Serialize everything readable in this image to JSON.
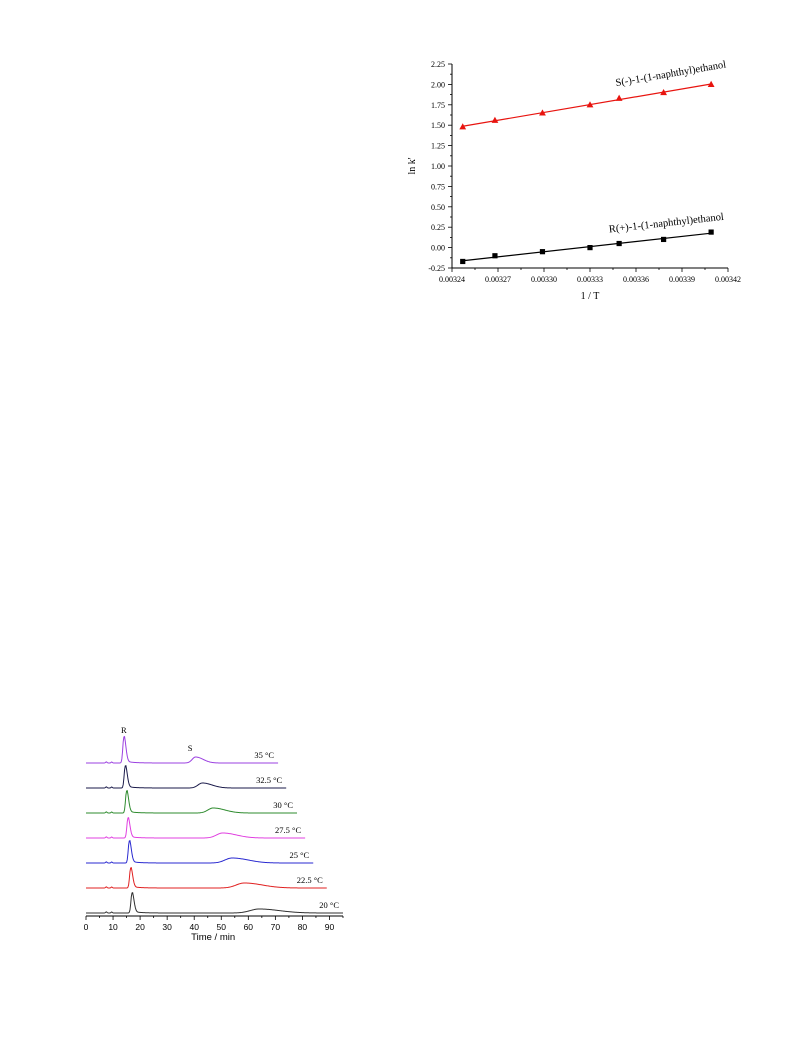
{
  "chart_data": [
    {
      "type": "scatter",
      "xlabel": "1 / T",
      "ylabel": "ln k'",
      "xlim": [
        0.00324,
        0.00342
      ],
      "ylim": [
        -0.25,
        2.25
      ],
      "xticks": [
        "0.00324",
        "0.00327",
        "0.00330",
        "0.00333",
        "0.00336",
        "0.00339",
        "0.00342"
      ],
      "yticks": [
        "-0.25",
        "0.00",
        "0.25",
        "0.50",
        "0.75",
        "1.00",
        "1.25",
        "1.50",
        "1.75",
        "2.00",
        "2.25"
      ],
      "series": [
        {
          "name": "S(-)-1-(1-naphthyl)ethanol",
          "marker": "triangle",
          "color": "#e8140f",
          "x": [
            0.003247,
            0.003268,
            0.003299,
            0.00333,
            0.003349,
            0.003378,
            0.003409
          ],
          "y": [
            1.48,
            1.56,
            1.65,
            1.75,
            1.83,
            1.9,
            2.0
          ]
        },
        {
          "name": "R(+)-1-(1-naphthyl)ethanol",
          "marker": "square",
          "color": "#000000",
          "x": [
            0.003247,
            0.003268,
            0.003299,
            0.00333,
            0.003349,
            0.003378,
            0.003409
          ],
          "y": [
            -0.17,
            -0.1,
            -0.05,
            0.0,
            0.05,
            0.1,
            0.19
          ]
        }
      ]
    },
    {
      "type": "line",
      "xlabel": "Time / min",
      "ylabel": "",
      "xlim": [
        0,
        95
      ],
      "xticks": [
        "0",
        "10",
        "20",
        "30",
        "40",
        "50",
        "60",
        "70",
        "80",
        "90"
      ],
      "peak_labels": {
        "r": "R",
        "s": "S"
      },
      "series": [
        {
          "name": "35 °C",
          "color": "#9b40e0",
          "r_peak": 14.0,
          "s_peak": 40.5,
          "end": 71
        },
        {
          "name": "32.5 °C",
          "color": "#1a1a4a",
          "r_peak": 14.5,
          "s_peak": 43.0,
          "end": 74
        },
        {
          "name": "30 °C",
          "color": "#2e8b2e",
          "r_peak": 15.0,
          "s_peak": 47.0,
          "end": 78
        },
        {
          "name": "27.5 °C",
          "color": "#e040e0",
          "r_peak": 15.5,
          "s_peak": 50.5,
          "end": 81
        },
        {
          "name": "25 °C",
          "color": "#2a2ad0",
          "r_peak": 16.0,
          "s_peak": 54.0,
          "end": 84
        },
        {
          "name": "22.5 °C",
          "color": "#e02020",
          "r_peak": 16.5,
          "s_peak": 58.5,
          "end": 89
        },
        {
          "name": "20 °C",
          "color": "#303030",
          "r_peak": 17.0,
          "s_peak": 64.0,
          "end": 95
        }
      ]
    }
  ]
}
